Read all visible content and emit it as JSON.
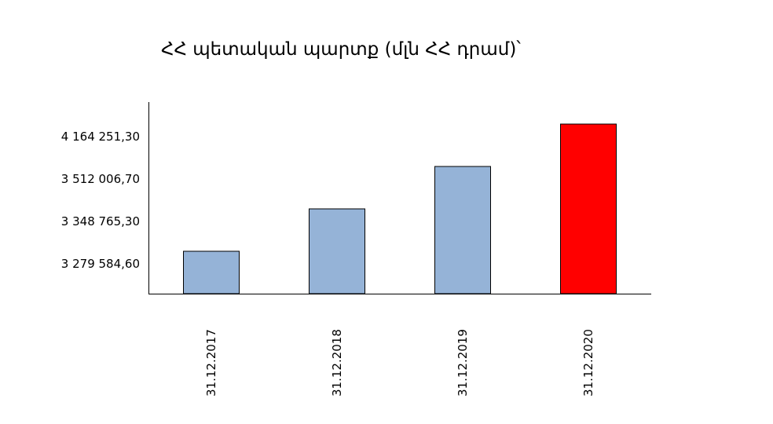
{
  "chart_data": {
    "type": "bar",
    "title": "ՀՀ պետական պարտք (մլն ՀՀ դրամ)՝",
    "categories": [
      "31.12.2017",
      "31.12.2018",
      "31.12.2019",
      "31.12.2020"
    ],
    "values": [
      3279584.6,
      3348765.3,
      3512006.7,
      4164251.3
    ],
    "value_labels": [
      "3 279 584,60",
      "3 348 765,30",
      "3 512 006,70",
      "4 164 251,30"
    ],
    "y_tick_labels": [
      "3 279 584,60",
      "3 348 765,30",
      "3 512 006,70",
      "4 164 251,30"
    ],
    "y_scale": "categorical (ticks at bar values, evenly spaced)",
    "grid": false,
    "legend": "none",
    "colors": {
      "default_bar": "#95b3d7",
      "highlight_bar": "#ff0000",
      "bar_border": "#000000"
    },
    "highlight_index": 3
  }
}
